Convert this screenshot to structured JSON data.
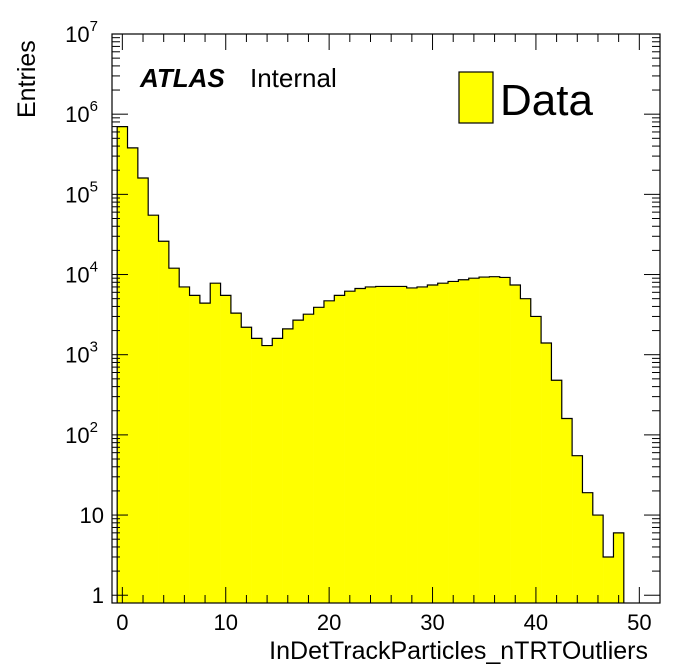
{
  "chart_data": {
    "type": "bar",
    "style": "histogram",
    "xlabel": "InDetTrackParticles_nTRTOutliers",
    "ylabel": "Entries",
    "yscale": "log",
    "xlim": [
      -1,
      52
    ],
    "ylim": [
      0.8,
      10000000
    ],
    "x_ticks": [
      {
        "value": 0,
        "label": "0"
      },
      {
        "value": 10,
        "label": "10"
      },
      {
        "value": 20,
        "label": "20"
      },
      {
        "value": 30,
        "label": "30"
      },
      {
        "value": 40,
        "label": "40"
      },
      {
        "value": 50,
        "label": "50"
      }
    ],
    "y_ticks": [
      {
        "value": 1,
        "base": "1",
        "exp": ""
      },
      {
        "value": 10,
        "base": "10",
        "exp": ""
      },
      {
        "value": 100,
        "base": "10",
        "exp": "2"
      },
      {
        "value": 1000,
        "base": "10",
        "exp": "3"
      },
      {
        "value": 10000,
        "base": "10",
        "exp": "4"
      },
      {
        "value": 100000,
        "base": "10",
        "exp": "5"
      },
      {
        "value": 1000000,
        "base": "10",
        "exp": "6"
      },
      {
        "value": 10000000,
        "base": "10",
        "exp": "7"
      }
    ],
    "fill_color": "#ffff00",
    "bin_edges_start": -0.5,
    "bin_width": 1,
    "series": [
      {
        "name": "Data",
        "values": [
          700000,
          380000,
          160000,
          55000,
          26000,
          12000,
          7000,
          5500,
          4400,
          7800,
          5500,
          3300,
          2200,
          1600,
          1300,
          1600,
          2100,
          2700,
          3200,
          3900,
          4700,
          5500,
          6200,
          6700,
          7000,
          7100,
          7100,
          7100,
          6800,
          7000,
          7400,
          7800,
          8200,
          8600,
          9000,
          9300,
          9400,
          9200,
          7400,
          5000,
          3000,
          1400,
          480,
          160,
          55,
          19,
          10,
          3,
          6
        ]
      }
    ]
  },
  "labels": {
    "atlas": "ATLAS",
    "internal": "Internal",
    "legend_entry": "Data"
  }
}
